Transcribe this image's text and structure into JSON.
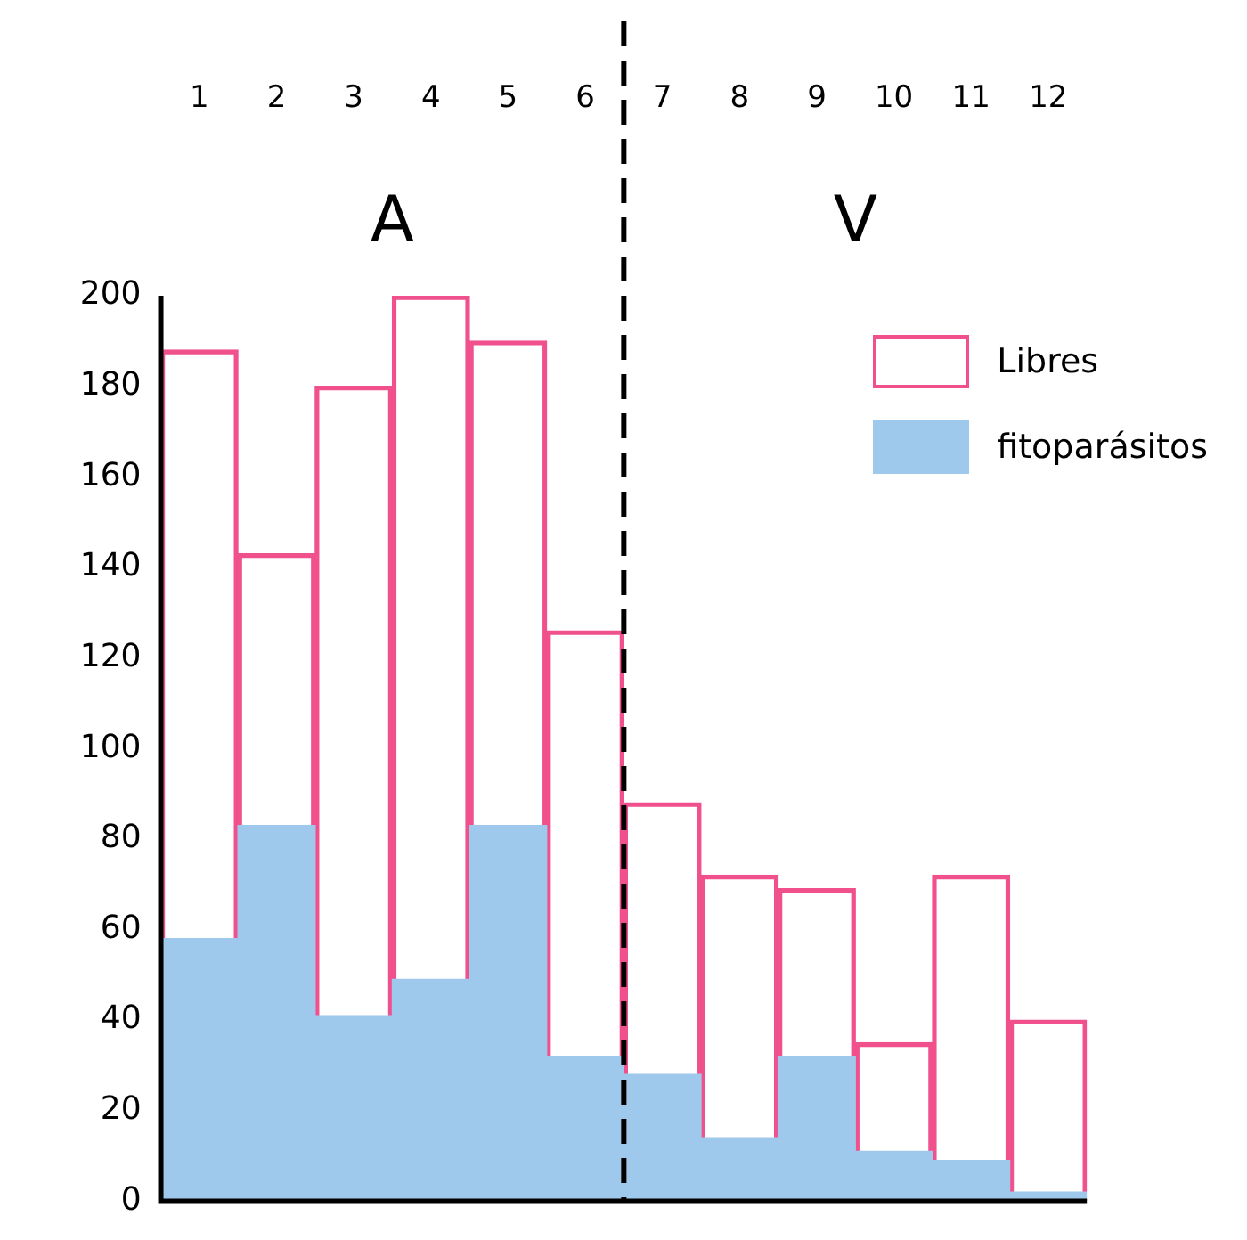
{
  "chart_data": {
    "type": "bar",
    "stacked": true,
    "x": [
      1,
      2,
      3,
      4,
      5,
      6,
      7,
      8,
      9,
      10,
      11,
      12
    ],
    "xlim": [
      0.5,
      12.5
    ],
    "xticks": [
      1,
      2,
      3,
      4,
      5,
      6,
      7,
      8,
      9,
      10,
      11,
      12
    ],
    "series": [
      {
        "name": "fitoparásitos",
        "color": "#9ec8ec",
        "values": [
          58,
          83,
          41,
          49,
          83,
          32,
          28,
          14,
          32,
          11,
          9,
          2
        ]
      },
      {
        "name": "Libres",
        "color": "#f0508c",
        "values": [
          130,
          60,
          139,
          151,
          107,
          94,
          60,
          58,
          37,
          24,
          63,
          38
        ]
      }
    ],
    "ylim": [
      0,
      200
    ],
    "yticks": [
      0,
      20,
      40,
      60,
      80,
      100,
      120,
      140,
      160,
      180,
      200
    ],
    "grid": false,
    "legend": "top right",
    "ref_lines": [
      {
        "axis": "x",
        "value": 6.5,
        "color": "#000000",
        "line_style": "dashed"
      }
    ],
    "annotations": [
      "A",
      "V"
    ]
  }
}
